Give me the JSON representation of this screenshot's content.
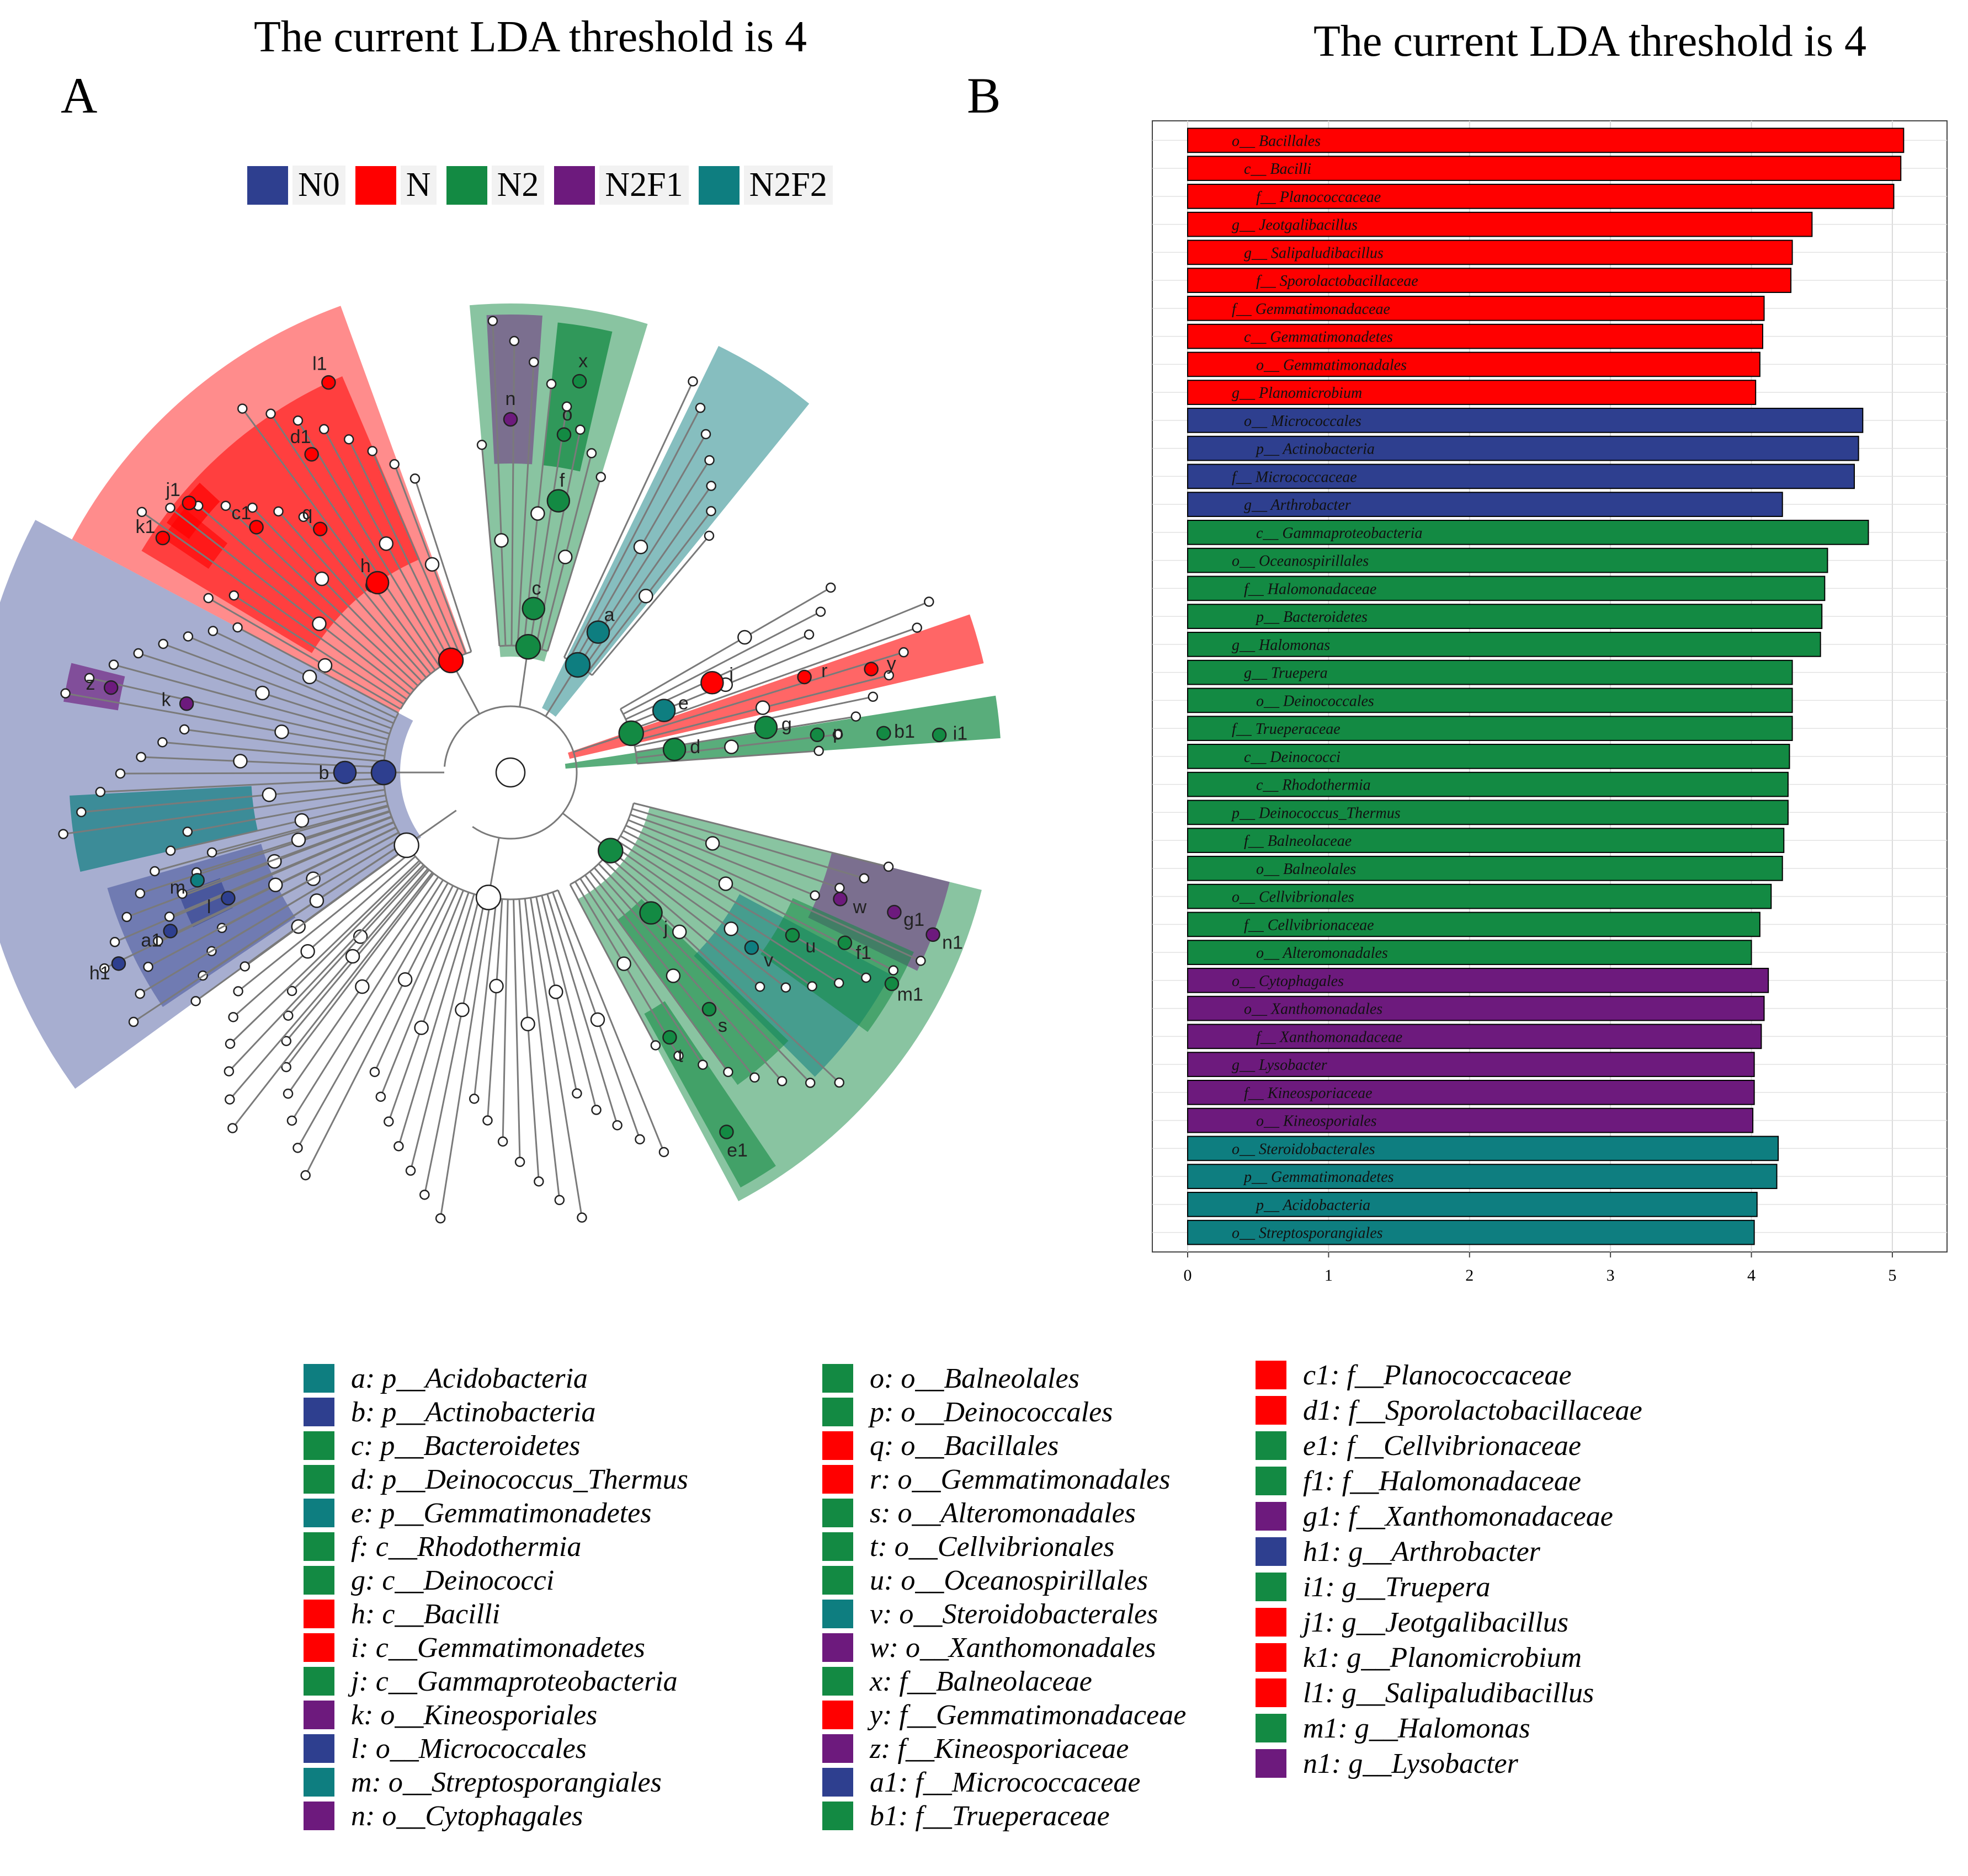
{
  "titles": {
    "a": "The current LDA threshold is 4",
    "b": "The current LDA threshold is 4"
  },
  "panels": {
    "a": "A",
    "b": "B"
  },
  "colors": {
    "N0": "#2e3f8f",
    "N": "#ff0000",
    "N2": "#138a43",
    "N2F1": "#6d1a7d",
    "N2F2": "#0e7e80"
  },
  "groups": [
    {
      "name": "N0",
      "color": "#2e3f8f"
    },
    {
      "name": "N",
      "color": "#ff0000"
    },
    {
      "name": "N2",
      "color": "#138a43"
    },
    {
      "name": "N2F1",
      "color": "#6d1a7d"
    },
    {
      "name": "N2F2",
      "color": "#0e7e80"
    }
  ],
  "clade_labels": [
    "a",
    "b",
    "c",
    "d",
    "e",
    "f",
    "g",
    "h",
    "i",
    "j",
    "k",
    "l",
    "m",
    "n",
    "o",
    "p",
    "q",
    "r",
    "s",
    "t",
    "u",
    "v",
    "w",
    "x",
    "y",
    "z",
    "a1",
    "b1",
    "c1",
    "d1",
    "e1",
    "f1",
    "g1",
    "h1",
    "i1",
    "j1",
    "k1",
    "l1",
    "m1",
    "n1"
  ],
  "clade_legend": [
    {
      "label": "a: p__Acidobacteria",
      "group": "N2F2"
    },
    {
      "label": "b: p__Actinobacteria",
      "group": "N0"
    },
    {
      "label": "c: p__Bacteroidetes",
      "group": "N2"
    },
    {
      "label": "d: p__Deinococcus_Thermus",
      "group": "N2"
    },
    {
      "label": "e: p__Gemmatimonadetes",
      "group": "N2F2"
    },
    {
      "label": "f: c__Rhodothermia",
      "group": "N2"
    },
    {
      "label": "g: c__Deinococci",
      "group": "N2"
    },
    {
      "label": "h: c__Bacilli",
      "group": "N"
    },
    {
      "label": "i: c__Gemmatimonadetes",
      "group": "N"
    },
    {
      "label": "j: c__Gammaproteobacteria",
      "group": "N2"
    },
    {
      "label": "k: o__Kineosporiales",
      "group": "N2F1"
    },
    {
      "label": "l: o__Micrococcales",
      "group": "N0"
    },
    {
      "label": "m: o__Streptosporangiales",
      "group": "N2F2"
    },
    {
      "label": "n: o__Cytophagales",
      "group": "N2F1"
    },
    {
      "label": "o: o__Balneolales",
      "group": "N2"
    },
    {
      "label": "p: o__Deinococcales",
      "group": "N2"
    },
    {
      "label": "q: o__Bacillales",
      "group": "N"
    },
    {
      "label": "r: o__Gemmatimonadales",
      "group": "N"
    },
    {
      "label": "s: o__Alteromonadales",
      "group": "N2"
    },
    {
      "label": "t: o__Cellvibrionales",
      "group": "N2"
    },
    {
      "label": "u: o__Oceanospirillales",
      "group": "N2"
    },
    {
      "label": "v: o__Steroidobacterales",
      "group": "N2F2"
    },
    {
      "label": "w: o__Xanthomonadales",
      "group": "N2F1"
    },
    {
      "label": "x: f__Balneolaceae",
      "group": "N2"
    },
    {
      "label": "y: f__Gemmatimonadaceae",
      "group": "N"
    },
    {
      "label": "z: f__Kineosporiaceae",
      "group": "N2F1"
    },
    {
      "label": "a1: f__Micrococcaceae",
      "group": "N0"
    },
    {
      "label": "b1: f__Trueperaceae",
      "group": "N2"
    },
    {
      "label": "c1: f__Planococcaceae",
      "group": "N"
    },
    {
      "label": "d1: f__Sporolactobacillaceae",
      "group": "N"
    },
    {
      "label": "e1: f__Cellvibrionaceae",
      "group": "N2"
    },
    {
      "label": "f1: f__Halomonadaceae",
      "group": "N2"
    },
    {
      "label": "g1: f__Xanthomonadaceae",
      "group": "N2F1"
    },
    {
      "label": "h1: g__Arthrobacter",
      "group": "N0"
    },
    {
      "label": "i1: g__Truepera",
      "group": "N2"
    },
    {
      "label": "j1: g__Jeotgalibacillus",
      "group": "N"
    },
    {
      "label": "k1: g__Planomicrobium",
      "group": "N"
    },
    {
      "label": "l1: g__Salipaludibacillus",
      "group": "N"
    },
    {
      "label": "m1: g__Halomonas",
      "group": "N2"
    },
    {
      "label": "n1: g__Lysobacter",
      "group": "N2F1"
    }
  ],
  "chart_data": [
    {
      "type": "cladogram",
      "title": "The current LDA threshold is 4",
      "legend": [
        "N0",
        "N",
        "N2",
        "N2F1",
        "N2F2"
      ],
      "legend_position": "top"
    },
    {
      "type": "bar",
      "orientation": "horizontal",
      "title": "The current LDA threshold is 4",
      "xlim": [
        0,
        5.2
      ],
      "xticks": [
        0,
        1,
        2,
        3,
        4,
        5
      ],
      "grid": true,
      "bars": [
        {
          "label": "o__Bacillales",
          "value": 5.08,
          "group": "N"
        },
        {
          "label": "c__Bacilli",
          "value": 5.06,
          "group": "N"
        },
        {
          "label": "f__Planococcaceae",
          "value": 5.01,
          "group": "N"
        },
        {
          "label": "g__Jeotgalibacillus",
          "value": 4.43,
          "group": "N"
        },
        {
          "label": "g__Salipaludibacillus",
          "value": 4.29,
          "group": "N"
        },
        {
          "label": "f__Sporolactobacillaceae",
          "value": 4.28,
          "group": "N"
        },
        {
          "label": "f__Gemmatimonadaceae",
          "value": 4.09,
          "group": "N"
        },
        {
          "label": "c__Gemmatimonadetes",
          "value": 4.08,
          "group": "N"
        },
        {
          "label": "o__Gemmatimonadales",
          "value": 4.06,
          "group": "N"
        },
        {
          "label": "g__Planomicrobium",
          "value": 4.03,
          "group": "N"
        },
        {
          "label": "o__Micrococcales",
          "value": 4.79,
          "group": "N0"
        },
        {
          "label": "p__Actinobacteria",
          "value": 4.76,
          "group": "N0"
        },
        {
          "label": "f__Micrococcaceae",
          "value": 4.73,
          "group": "N0"
        },
        {
          "label": "g__Arthrobacter",
          "value": 4.22,
          "group": "N0"
        },
        {
          "label": "c__Gammaproteobacteria",
          "value": 4.83,
          "group": "N2"
        },
        {
          "label": "o__Oceanospirillales",
          "value": 4.54,
          "group": "N2"
        },
        {
          "label": "f__Halomonadaceae",
          "value": 4.52,
          "group": "N2"
        },
        {
          "label": "p__Bacteroidetes",
          "value": 4.5,
          "group": "N2"
        },
        {
          "label": "g__Halomonas",
          "value": 4.49,
          "group": "N2"
        },
        {
          "label": "g__Truepera",
          "value": 4.29,
          "group": "N2"
        },
        {
          "label": "o__Deinococcales",
          "value": 4.29,
          "group": "N2"
        },
        {
          "label": "f__Trueperaceae",
          "value": 4.29,
          "group": "N2"
        },
        {
          "label": "c__Deinococci",
          "value": 4.27,
          "group": "N2"
        },
        {
          "label": "c__Rhodothermia",
          "value": 4.26,
          "group": "N2"
        },
        {
          "label": "p__Deinococcus_Thermus",
          "value": 4.26,
          "group": "N2"
        },
        {
          "label": "f__Balneolaceae",
          "value": 4.23,
          "group": "N2"
        },
        {
          "label": "o__Balneolales",
          "value": 4.22,
          "group": "N2"
        },
        {
          "label": "o__Cellvibrionales",
          "value": 4.14,
          "group": "N2"
        },
        {
          "label": "f__Cellvibrionaceae",
          "value": 4.06,
          "group": "N2"
        },
        {
          "label": "o__Alteromonadales",
          "value": 4.0,
          "group": "N2"
        },
        {
          "label": "o__Cytophagales",
          "value": 4.12,
          "group": "N2F1"
        },
        {
          "label": "o__Xanthomonadales",
          "value": 4.09,
          "group": "N2F1"
        },
        {
          "label": "f__Xanthomonadaceae",
          "value": 4.07,
          "group": "N2F1"
        },
        {
          "label": "g__Lysobacter",
          "value": 4.02,
          "group": "N2F1"
        },
        {
          "label": "f__Kineosporiaceae",
          "value": 4.02,
          "group": "N2F1"
        },
        {
          "label": "o__Kineosporiales",
          "value": 4.01,
          "group": "N2F1"
        },
        {
          "label": "o__Steroidobacterales",
          "value": 4.19,
          "group": "N2F2"
        },
        {
          "label": "p__Gemmatimonadetes",
          "value": 4.18,
          "group": "N2F2"
        },
        {
          "label": "p__Acidobacteria",
          "value": 4.04,
          "group": "N2F2"
        },
        {
          "label": "o__Streptosporangiales",
          "value": 4.02,
          "group": "N2F2"
        }
      ]
    }
  ]
}
